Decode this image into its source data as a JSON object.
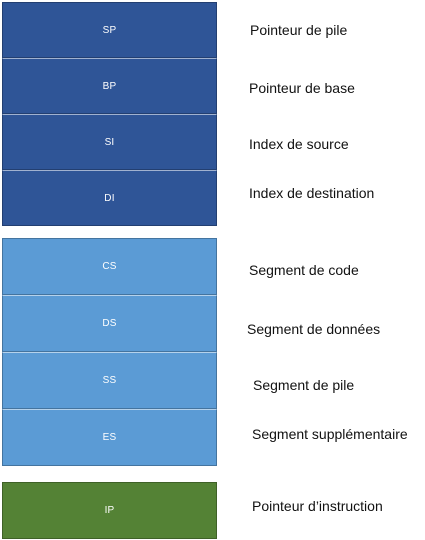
{
  "pointers": [
    {
      "code": "SP",
      "label": "Pointeur de pile"
    },
    {
      "code": "BP",
      "label": "Pointeur de base"
    },
    {
      "code": "SI",
      "label": "Index de source"
    },
    {
      "code": "DI",
      "label": "Index de destination"
    }
  ],
  "segments": [
    {
      "code": "CS",
      "label": "Segment de code"
    },
    {
      "code": "DS",
      "label": "Segment de données"
    },
    {
      "code": "SS",
      "label": "Segment de pile"
    },
    {
      "code": "ES",
      "label": "Segment supplémentaire"
    }
  ],
  "instruction": {
    "code": "IP",
    "label": "Pointeur d’instruction"
  },
  "colors": {
    "pointer_block": "#2f5597",
    "segment_block": "#5b9bd5",
    "instruction_block": "#548235"
  }
}
